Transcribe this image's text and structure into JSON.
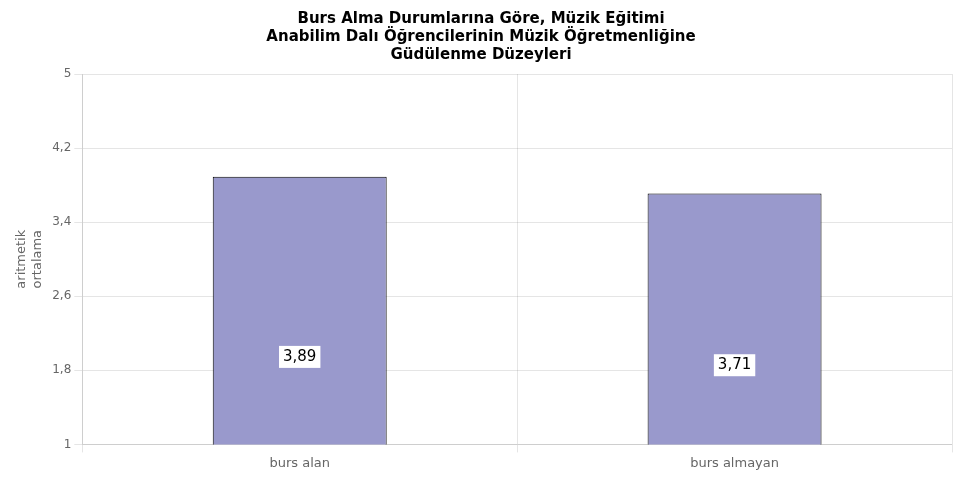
{
  "chart_data": {
    "type": "bar",
    "title": "Burs Alma Durumlarına Göre, Müzik Eğitimi\nAnabilim Dalı Öğrencilerinin Müzik Öğretmenliğine\nGüdülenme Düzeyleri",
    "categories": [
      "burs alan",
      "burs almayan"
    ],
    "values": [
      3.89,
      3.71
    ],
    "value_labels": [
      "3,89",
      "3,71"
    ],
    "data_labels": true,
    "color": "#9999cc",
    "y_label": "aritmetik\nortalama",
    "ylim": [
      1,
      5
    ],
    "yticks": [
      1,
      {
        "value": 1.8,
        "label": "1,8"
      },
      {
        "value": 2.6,
        "label": "2,6"
      },
      {
        "value": 3.4,
        "label": "3,4"
      },
      {
        "value": 4.2,
        "label": "4,2"
      },
      5
    ],
    "grid": true
  }
}
